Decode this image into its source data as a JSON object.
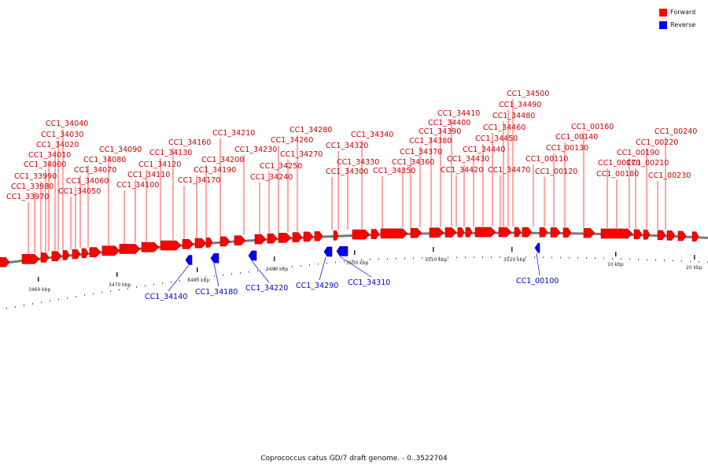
{
  "colors": {
    "forward": "#ff0000",
    "reverse": "#0000ff",
    "backbone": "#7a7a7a"
  },
  "legend": [
    {
      "label": "Forward",
      "color": "#ff0000"
    },
    {
      "label": "Reverse",
      "color": "#0000ff"
    }
  ],
  "caption": "Coprococcus catus GD/7 draft genome. - 0..3522704",
  "forward_genes": [
    "CC1_33970",
    "CC1_33980",
    "CC1_33990",
    "CC1_34000",
    "CC1_34010",
    "CC1_34020",
    "CC1_34030",
    "CC1_34040",
    "CC1_34050",
    "CC1_34060",
    "CC1_34070",
    "CC1_34080",
    "CC1_34090",
    "CC1_34100",
    "CC1_34110",
    "CC1_34120",
    "CC1_34130",
    "CC1_34160",
    "CC1_34170",
    "CC1_34190",
    "CC1_34200",
    "CC1_34210",
    "CC1_34230",
    "CC1_34240",
    "CC1_34250",
    "CC1_34260",
    "CC1_34270",
    "CC1_34280",
    "CC1_34300",
    "CC1_34320",
    "CC1_34330",
    "CC1_34340",
    "CC1_34350",
    "CC1_34360",
    "CC1_34370",
    "CC1_34380",
    "CC1_34390",
    "CC1_34400",
    "CC1_34410",
    "CC1_34420",
    "CC1_34430",
    "CC1_34440",
    "CC1_34450",
    "CC1_34460",
    "CC1_34470",
    "CC1_34480",
    "CC1_34490",
    "CC1_34500",
    "CC1_00110",
    "CC1_00120",
    "CC1_00130",
    "CC1_00140",
    "CC1_00160",
    "CC1_00170",
    "CC1_00180",
    "CC1_00190",
    "CC1_00210",
    "CC1_00220",
    "CC1_00230",
    "CC1_00240"
  ],
  "reverse_genes": [
    "CC1_34140",
    "CC1_34180",
    "CC1_34220",
    "CC1_34290",
    "CC1_34310",
    "CC1_00100"
  ],
  "scale_labels": [
    "3460 kbp",
    "3470 kbp",
    "3480 kbp",
    "3490 kbp",
    "3500 kbp",
    "3510 kbp",
    "3520 kbp",
    "10 kbp",
    "20 kbp"
  ]
}
